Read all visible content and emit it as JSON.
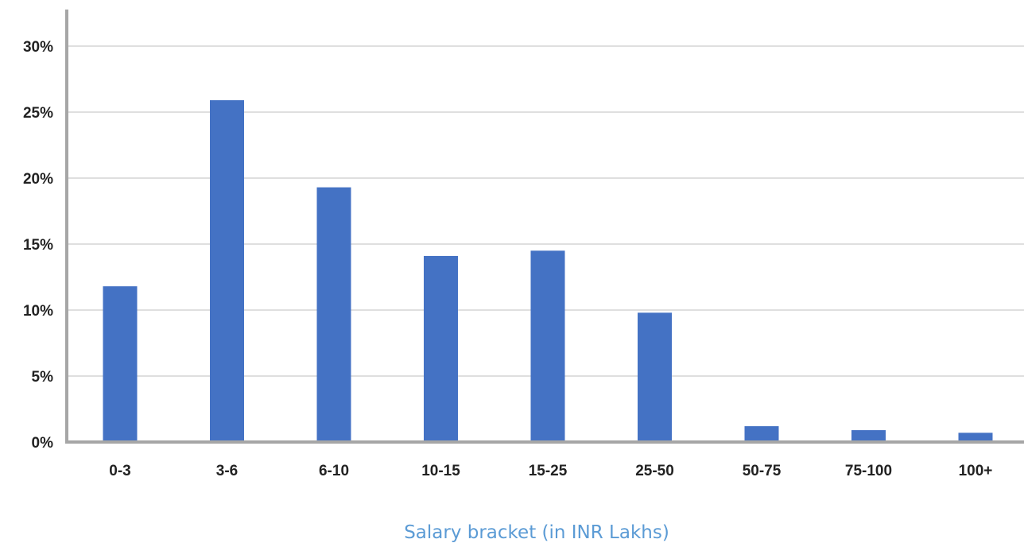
{
  "chart_data": {
    "type": "bar",
    "xlabel": "Salary bracket (in INR Lakhs)",
    "ylabel": "",
    "categories": [
      "0-3",
      "3-6",
      "6-10",
      "10-15",
      "15-25",
      "25-50",
      "50-75",
      "75-100",
      "100+"
    ],
    "values": [
      11.8,
      25.9,
      19.3,
      14.1,
      14.5,
      9.8,
      1.2,
      0.9,
      0.7
    ],
    "ylim": [
      0,
      30
    ],
    "yticks": [
      0,
      5,
      10,
      15,
      20,
      25,
      30
    ],
    "ytick_labels": [
      "0%",
      "5%",
      "10%",
      "15%",
      "20%",
      "25%",
      "30%"
    ],
    "grid": true,
    "legend": "none",
    "colors": {
      "bar": "#4472c4",
      "grid": "#bfbfbf",
      "axis": "#a6a6a6",
      "xlabel": "#5b9bd5"
    }
  }
}
